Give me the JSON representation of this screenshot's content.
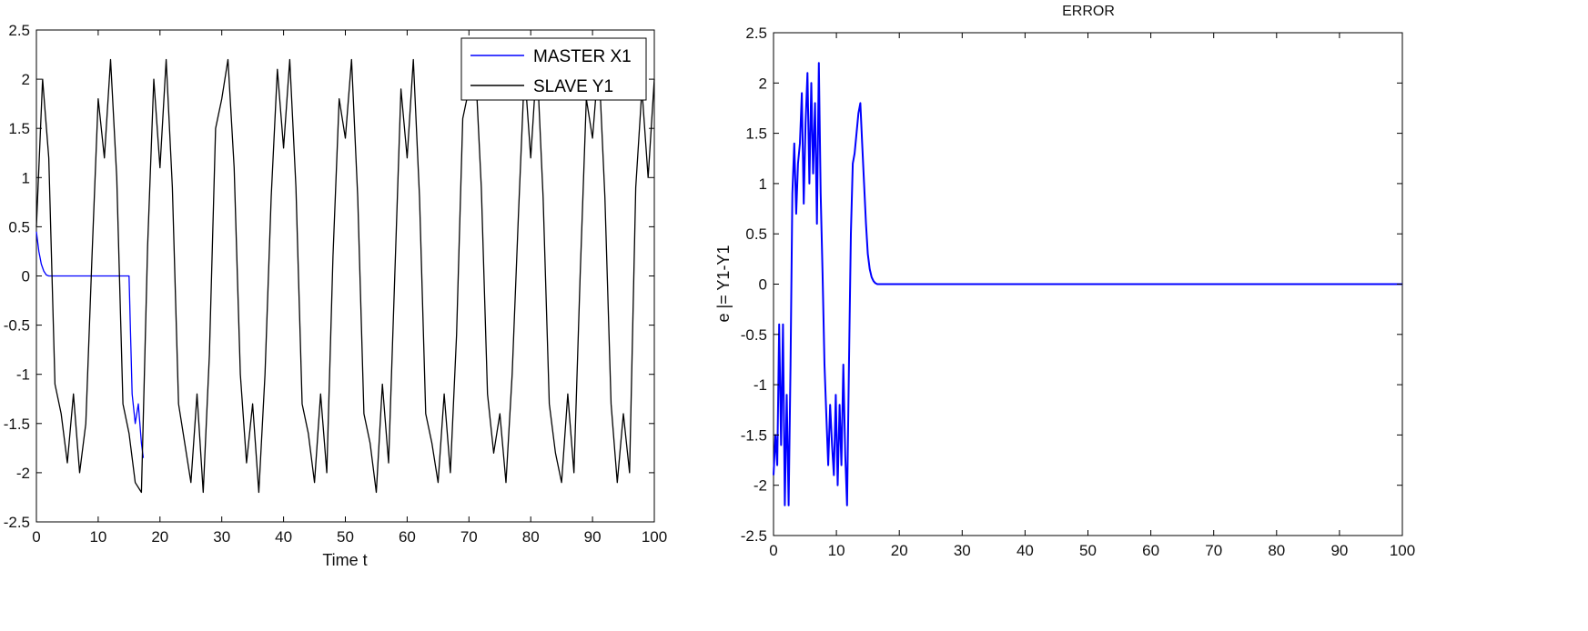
{
  "chart_data": [
    {
      "type": "line",
      "title": "",
      "xlabel": "Time t",
      "ylabel": "",
      "xlim": [
        0,
        100
      ],
      "ylim": [
        -2.5,
        2.5
      ],
      "xticks": [
        "0",
        "10",
        "20",
        "30",
        "40",
        "50",
        "60",
        "70",
        "80",
        "90",
        "100"
      ],
      "yticks": [
        "2.5",
        "2",
        "1.5",
        "1",
        "0.5",
        "0",
        "-0.5",
        "-1",
        "-1.5",
        "-2",
        "-2.5"
      ],
      "grid": false,
      "legend_position": "top-right",
      "series": [
        {
          "name": "MASTER X1",
          "color": "#0000ff",
          "x": [
            0,
            0.4,
            0.8,
            1.2,
            1.6,
            2.0,
            3.0,
            5,
            10,
            15.0,
            15.2,
            15.5,
            16.0,
            16.5,
            17.0,
            17.3
          ],
          "values": [
            0.45,
            0.25,
            0.12,
            0.05,
            0.01,
            0.0,
            0.0,
            0.0,
            0.0,
            0.0,
            -0.5,
            -1.2,
            -1.5,
            -1.3,
            -1.7,
            -1.85
          ]
        },
        {
          "name": "SLAVE Y1",
          "color": "#000000",
          "x": [
            0,
            1,
            2,
            3,
            4,
            5,
            6,
            7,
            8,
            9,
            10,
            11,
            12,
            13,
            14,
            15,
            16,
            17,
            18,
            19,
            20,
            21,
            22,
            23,
            24,
            25,
            26,
            27,
            28,
            29,
            30,
            31,
            32,
            33,
            34,
            35,
            36,
            37,
            38,
            39,
            40,
            41,
            42,
            43,
            44,
            45,
            46,
            47,
            48,
            49,
            50,
            51,
            52,
            53,
            54,
            55,
            56,
            57,
            58,
            59,
            60,
            61,
            62,
            63,
            64,
            65,
            66,
            67,
            68,
            69,
            70,
            71,
            72,
            73,
            74,
            75,
            76,
            77,
            78,
            79,
            80,
            81,
            82,
            83,
            84,
            85,
            86,
            87,
            88,
            89,
            90,
            91,
            92,
            93,
            94,
            95,
            96,
            97,
            98,
            99,
            100
          ],
          "values": [
            0.5,
            2.0,
            1.2,
            -1.1,
            -1.4,
            -1.9,
            -1.2,
            -2.0,
            -1.5,
            0.2,
            1.8,
            1.2,
            2.2,
            1.0,
            -1.3,
            -1.6,
            -2.1,
            -2.2,
            0.3,
            2.0,
            1.1,
            2.2,
            0.9,
            -1.3,
            -1.7,
            -2.1,
            -1.2,
            -2.2,
            -0.8,
            1.5,
            1.8,
            2.2,
            1.1,
            -1.0,
            -1.9,
            -1.3,
            -2.2,
            -1.0,
            0.8,
            2.1,
            1.3,
            2.2,
            0.9,
            -1.3,
            -1.6,
            -2.1,
            -1.2,
            -2.0,
            0.2,
            1.8,
            1.4,
            2.2,
            0.8,
            -1.4,
            -1.7,
            -2.2,
            -1.1,
            -1.9,
            0.0,
            1.9,
            1.2,
            2.2,
            0.8,
            -1.4,
            -1.7,
            -2.1,
            -1.2,
            -2.0,
            -0.6,
            1.6,
            1.9,
            2.2,
            0.9,
            -1.2,
            -1.8,
            -1.4,
            -2.1,
            -1.0,
            0.6,
            2.1,
            1.2,
            2.2,
            0.8,
            -1.3,
            -1.8,
            -2.1,
            -1.2,
            -2.0,
            0.0,
            1.8,
            1.4,
            2.2,
            0.8,
            -1.3,
            -2.1,
            -1.4,
            -2.0,
            0.9,
            1.9,
            1.0,
            2.0
          ]
        }
      ]
    },
    {
      "type": "line",
      "title": "ERROR",
      "xlabel": "",
      "ylabel": "e |= Y1-Y1",
      "xlim": [
        0,
        100
      ],
      "ylim": [
        -2.5,
        2.5
      ],
      "xticks": [
        "0",
        "10",
        "20",
        "30",
        "40",
        "50",
        "60",
        "70",
        "80",
        "90",
        "100"
      ],
      "yticks": [
        "2.5",
        "2",
        "1.5",
        "1",
        "0.5",
        "0",
        "-0.5",
        "-1",
        "-1.5",
        "-2",
        "-2.5"
      ],
      "grid": false,
      "series": [
        {
          "color": "#0000ff",
          "x": [
            0,
            0.3,
            0.6,
            0.9,
            1.2,
            1.5,
            1.8,
            2.1,
            2.4,
            2.7,
            3.0,
            3.3,
            3.6,
            3.9,
            4.2,
            4.5,
            4.8,
            5.1,
            5.4,
            5.7,
            6.0,
            6.3,
            6.6,
            6.9,
            7.2,
            7.5,
            7.8,
            8.1,
            8.4,
            8.7,
            9.0,
            9.3,
            9.6,
            9.9,
            10.2,
            10.5,
            10.8,
            11.1,
            11.4,
            11.7,
            12.0,
            12.3,
            12.6,
            12.9,
            13.2,
            13.5,
            13.8,
            14.1,
            14.4,
            14.7,
            15.0,
            15.3,
            15.6,
            15.9,
            16.2,
            16.5,
            17.0,
            18.0,
            20,
            30,
            50,
            70,
            100
          ],
          "values": [
            -1.9,
            -1.5,
            -1.8,
            -0.4,
            -1.6,
            -0.4,
            -2.2,
            -1.1,
            -2.2,
            -0.8,
            0.9,
            1.4,
            0.7,
            1.2,
            1.4,
            1.9,
            0.8,
            1.6,
            2.1,
            1.0,
            2.0,
            1.1,
            1.8,
            0.6,
            2.2,
            0.9,
            0.1,
            -0.8,
            -1.3,
            -1.8,
            -1.2,
            -1.6,
            -1.9,
            -1.1,
            -2.0,
            -1.2,
            -1.8,
            -0.8,
            -1.7,
            -2.2,
            -0.8,
            0.5,
            1.2,
            1.3,
            1.5,
            1.7,
            1.8,
            1.4,
            1.0,
            0.6,
            0.3,
            0.15,
            0.07,
            0.03,
            0.01,
            0.0,
            0.0,
            0.0,
            0.0,
            0.0,
            0.0,
            0.0,
            0.0
          ]
        }
      ]
    }
  ]
}
